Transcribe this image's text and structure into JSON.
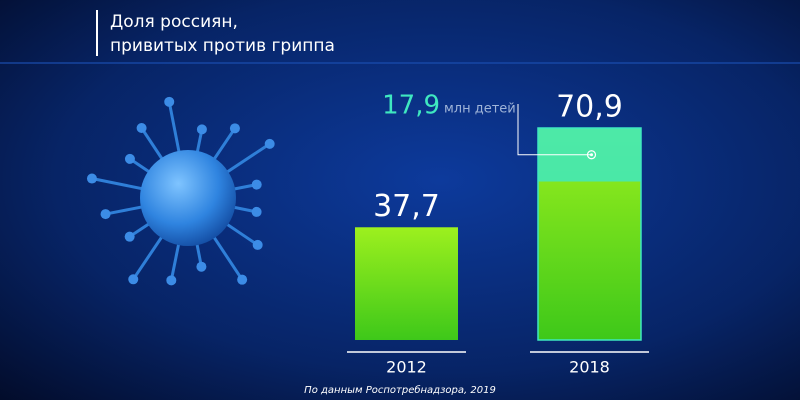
{
  "chart_data": {
    "type": "bar",
    "title": "Доля россиян,\nпривитых против гриппа",
    "categories": [
      "2012",
      "2018"
    ],
    "values": [
      37.7,
      70.9
    ],
    "value_labels": [
      "37,7",
      "70,9"
    ],
    "color": "#8be01c",
    "annotation": {
      "value": 17.9,
      "value_label": "17,9",
      "text": "млн детей",
      "color": "#3fe8c0"
    },
    "source": "По данным Роспотребнадзора, 2019"
  }
}
